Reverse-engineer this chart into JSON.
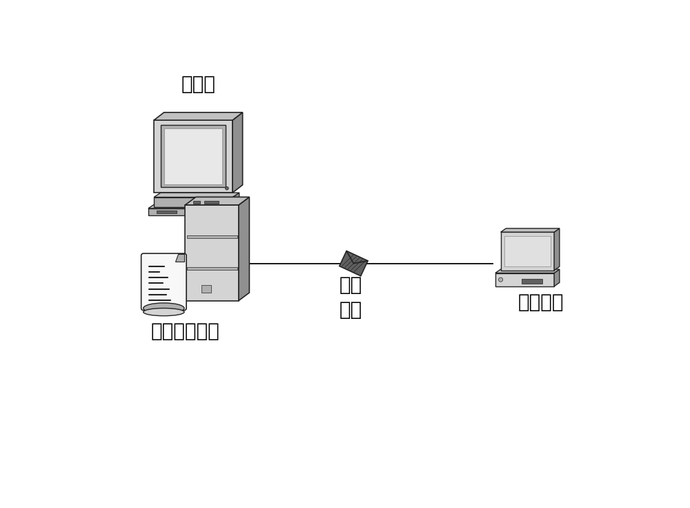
{
  "bg_color": "#ffffff",
  "text_color": "#000000",
  "label_server": "服务器",
  "label_aux": "辅助结构机械",
  "label_serial": "串口\n协议",
  "label_vehicle": "车载设备",
  "font_size_labels": 20,
  "line_color": "#1a1a1a",
  "fig_width": 10.0,
  "fig_height": 7.36,
  "gray_light": "#d4d4d4",
  "gray_mid": "#b0b0b0",
  "gray_dark": "#888888",
  "gray_darker": "#606060",
  "gray_side": "#909090",
  "gray_top": "#c0c0c0",
  "white": "#f8f8f8",
  "near_black": "#222222"
}
